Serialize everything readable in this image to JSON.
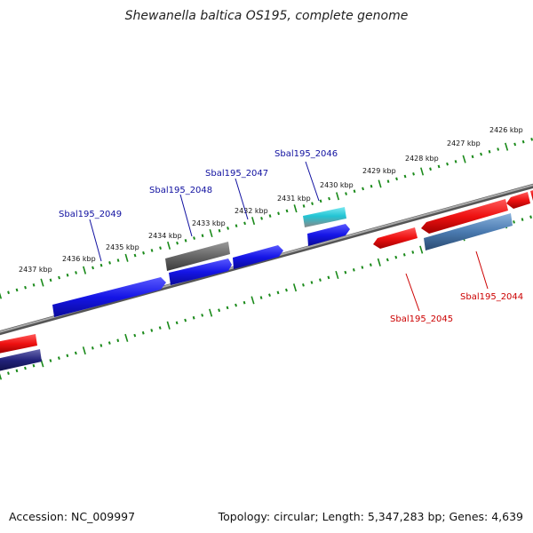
{
  "title": "Shewanella baltica OS195, complete genome",
  "footer": {
    "accession": "Accession: NC_009997",
    "summary": "Topology: circular; Length: 5,347,283 bp; Genes: 4,639"
  },
  "scale": {
    "kbp_labels": [
      "2426 kbp",
      "2427 kbp",
      "2428 kbp",
      "2429 kbp",
      "2430 kbp",
      "2431 kbp",
      "2432 kbp",
      "2433 kbp",
      "2434 kbp",
      "2435 kbp",
      "2436 kbp",
      "2437 kbp"
    ]
  },
  "genes": {
    "forward_label_color": "#1010a0",
    "reverse_label_color": "#cc0000",
    "labels": [
      "Sbal195_2046",
      "Sbal195_2047",
      "Sbal195_2048",
      "Sbal195_2049",
      "Sbal195_2044",
      "Sbal195_2045"
    ]
  },
  "colors": {
    "forward_gene": "#1515e6",
    "reverse_gene": "#ee1111",
    "backbone": "#888888",
    "ruler": "#1a8a1a",
    "cyan_gene": "#22c4d4",
    "gray_gene": "#666666",
    "steelblue_gene": "#4a7ab0",
    "navy_gene": "#22227a"
  }
}
